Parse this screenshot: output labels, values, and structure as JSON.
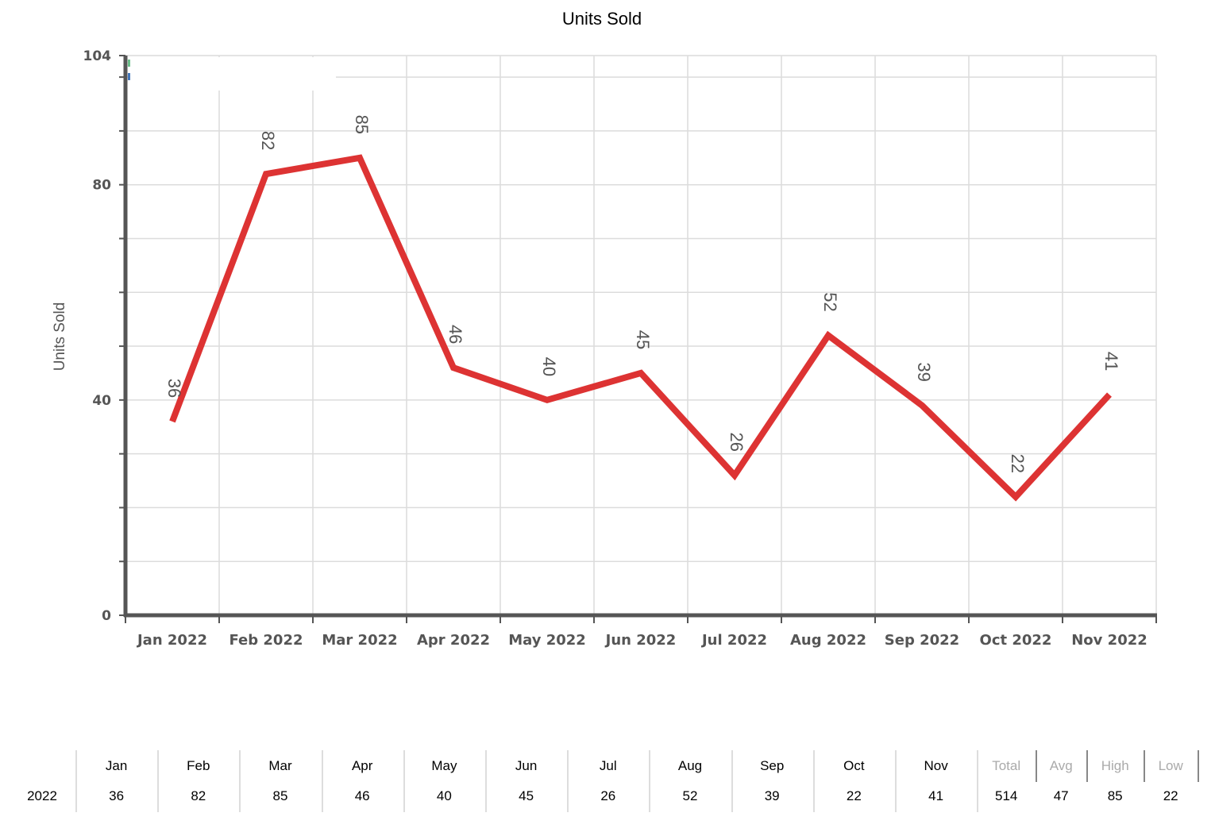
{
  "chart_data": {
    "type": "line",
    "title": "Units Sold",
    "ylabel": "Units Sold",
    "xlabel": "",
    "categories": [
      "Jan 2022",
      "Feb 2022",
      "Mar 2022",
      "Apr 2022",
      "May 2022",
      "Jun 2022",
      "Jul 2022",
      "Aug 2022",
      "Sep 2022",
      "Oct 2022",
      "Nov 2022"
    ],
    "series": [
      {
        "values": [
          36,
          82,
          85,
          46,
          40,
          45,
          26,
          52,
          39,
          22,
          41
        ],
        "color": "#dd3333"
      }
    ],
    "ylim": [
      0,
      104
    ],
    "yticks": [
      0,
      40,
      80,
      104
    ],
    "grid": true
  },
  "summary": {
    "row_label": "2022",
    "months": [
      "Jan",
      "Feb",
      "Mar",
      "Apr",
      "May",
      "Jun",
      "Jul",
      "Aug",
      "Sep",
      "Oct",
      "Nov"
    ],
    "values": [
      "36",
      "82",
      "85",
      "46",
      "40",
      "45",
      "26",
      "52",
      "39",
      "22",
      "41"
    ],
    "stats": [
      {
        "label": "Total",
        "value": "514"
      },
      {
        "label": "Avg",
        "value": "47"
      },
      {
        "label": "High",
        "value": "85"
      },
      {
        "label": "Low",
        "value": "22"
      }
    ]
  }
}
